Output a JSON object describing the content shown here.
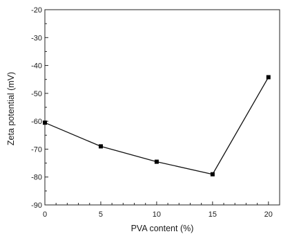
{
  "chart_data": {
    "type": "line",
    "title": "",
    "xlabel": "PVA content (%)",
    "ylabel": "Zeta potential (mV)",
    "xlim": [
      0,
      21
    ],
    "ylim": [
      -90,
      -20
    ],
    "xticks": [
      0,
      5,
      10,
      15,
      20
    ],
    "yticks": [
      -90,
      -80,
      -70,
      -60,
      -50,
      -40,
      -30,
      -20
    ],
    "xtick_labels": [
      "0",
      "5",
      "10",
      "15",
      "20"
    ],
    "ytick_labels": [
      "-90",
      "-80",
      "-70",
      "-60",
      "-50",
      "-40",
      "-30",
      "-20"
    ],
    "grid": false,
    "legend": "none",
    "marker": "square",
    "series": [
      {
        "x": [
          0,
          5,
          10,
          15,
          20
        ],
        "y": [
          -60.5,
          -69,
          -74.5,
          -79,
          -44.2
        ]
      }
    ],
    "colors": {
      "line": "#111111",
      "marker": "#000000",
      "axis": "#222222"
    }
  }
}
